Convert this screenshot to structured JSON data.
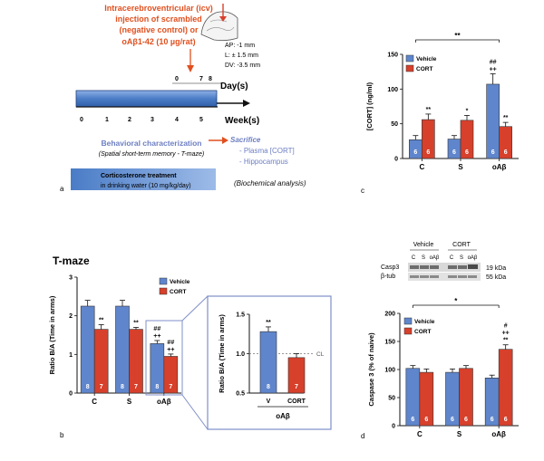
{
  "colors": {
    "vehicle": "#5f86cc",
    "cort": "#d7402b",
    "timeline": "#4a7cc6",
    "accent_orange": "#e0501f",
    "sacrifice_text": "#6d7fc2"
  },
  "panel_a": {
    "letter": "a",
    "icv_text": [
      "Intracerebroventricular (icv)",
      "injection of scrambled",
      "(negative control) or",
      "oAβ1-42 (10 µg/rat)"
    ],
    "coords": [
      "AP: -1 mm",
      "L: ± 1.5 mm",
      "DV: -3.5 mm"
    ],
    "day_axis": {
      "ticks": [
        "0",
        "7",
        "8"
      ],
      "label": "Day(s)"
    },
    "week_axis": {
      "ticks": [
        "0",
        "1",
        "2",
        "3",
        "4",
        "5"
      ],
      "label": "Week(s)"
    },
    "behavioral": [
      "Behavioral characterization",
      "(Spatial short-term memory - T-maze)"
    ],
    "sacrifice": [
      "Sacrifice",
      "- Plasma [CORT]",
      "- Hippocampus",
      "(Biochemical analysis)"
    ],
    "legend": [
      "Corticosterone treatment",
      "in drinking water (10 mg/kg/day)"
    ]
  },
  "panel_b": {
    "letter": "b",
    "title": "T-maze"
  },
  "panel_c": {
    "letter": "c"
  },
  "panel_d": {
    "letter": "d"
  },
  "western_blot": {
    "group_labels": [
      "Vehicle",
      "CORT"
    ],
    "lane_labels": [
      "C",
      "S",
      "oAβ",
      "C",
      "S",
      "oAβ"
    ],
    "row_labels": [
      "Casp3",
      "β-tub"
    ],
    "kda_labels": [
      "19 kDa",
      "55 kDa"
    ]
  },
  "chart_data": [
    {
      "id": "c",
      "type": "bar",
      "ylabel": "[CORT] (ng/ml)",
      "ylim": [
        0,
        150
      ],
      "yticks": [
        "0",
        "50",
        "100",
        "150"
      ],
      "categories": [
        "C",
        "S",
        "oAβ"
      ],
      "series": [
        {
          "name": "Vehicle",
          "values": [
            27,
            28,
            107
          ],
          "errors": [
            6,
            5,
            15
          ],
          "n": [
            "6",
            "6",
            "6"
          ],
          "marks": [
            "",
            "",
            "##\n++"
          ]
        },
        {
          "name": "CORT",
          "values": [
            56,
            55,
            46
          ],
          "errors": [
            8,
            7,
            6
          ],
          "n": [
            "6",
            "6",
            "6"
          ],
          "marks": [
            "**",
            "*",
            "**"
          ]
        }
      ],
      "bracket_label": "**",
      "legend_position": "top-left",
      "grid": false
    },
    {
      "id": "b",
      "type": "bar",
      "ylabel": "Ratio B/A (Time in arms)",
      "ylim": [
        0,
        3
      ],
      "yticks": [
        "0",
        "1",
        "2",
        "3"
      ],
      "categories": [
        "C",
        "S",
        "oAβ"
      ],
      "series": [
        {
          "name": "Vehicle",
          "values": [
            2.25,
            2.25,
            1.28
          ],
          "errors": [
            0.15,
            0.15,
            0.08
          ],
          "n": [
            "8",
            "8",
            "8"
          ],
          "marks": [
            "",
            "",
            "##\n++"
          ]
        },
        {
          "name": "CORT",
          "values": [
            1.65,
            1.65,
            0.95
          ],
          "errors": [
            0.12,
            0.05,
            0.06
          ],
          "n": [
            "7",
            "7",
            "7"
          ],
          "marks": [
            "**",
            "**",
            "##\n++"
          ]
        }
      ],
      "legend_position": "top-right",
      "grid": false
    },
    {
      "id": "b-inset",
      "type": "bar",
      "ylabel": "Ratio B/A (Time in arms)",
      "ylim": [
        0.5,
        1.5
      ],
      "yticks": [
        "0.5",
        "1.0",
        "1.5"
      ],
      "categories": [
        "V",
        "CORT"
      ],
      "group_label": "oAβ",
      "values": [
        1.28,
        0.95
      ],
      "errors": [
        0.06,
        0.05
      ],
      "n": [
        "8",
        "7"
      ],
      "marks": [
        "**",
        ""
      ],
      "reference_line": {
        "label": "CL",
        "value": 1.0
      },
      "grid": false
    },
    {
      "id": "d",
      "type": "bar",
      "ylabel": "Caspase 3 (% of naive)",
      "ylim": [
        0,
        200
      ],
      "yticks": [
        "0",
        "50",
        "100",
        "150",
        "200"
      ],
      "categories": [
        "C",
        "S",
        "oAβ"
      ],
      "series": [
        {
          "name": "Vehicle",
          "values": [
            102,
            95,
            85
          ],
          "errors": [
            5,
            6,
            5
          ],
          "n": [
            "6",
            "6",
            "6"
          ],
          "marks": [
            "",
            "",
            ""
          ]
        },
        {
          "name": "CORT",
          "values": [
            95,
            102,
            136
          ],
          "errors": [
            6,
            5,
            8
          ],
          "n": [
            "6",
            "6",
            "6"
          ],
          "marks": [
            "",
            "",
            "#\n++\n**"
          ]
        }
      ],
      "bracket_label": "*",
      "legend_position": "top-left",
      "grid": false
    }
  ]
}
